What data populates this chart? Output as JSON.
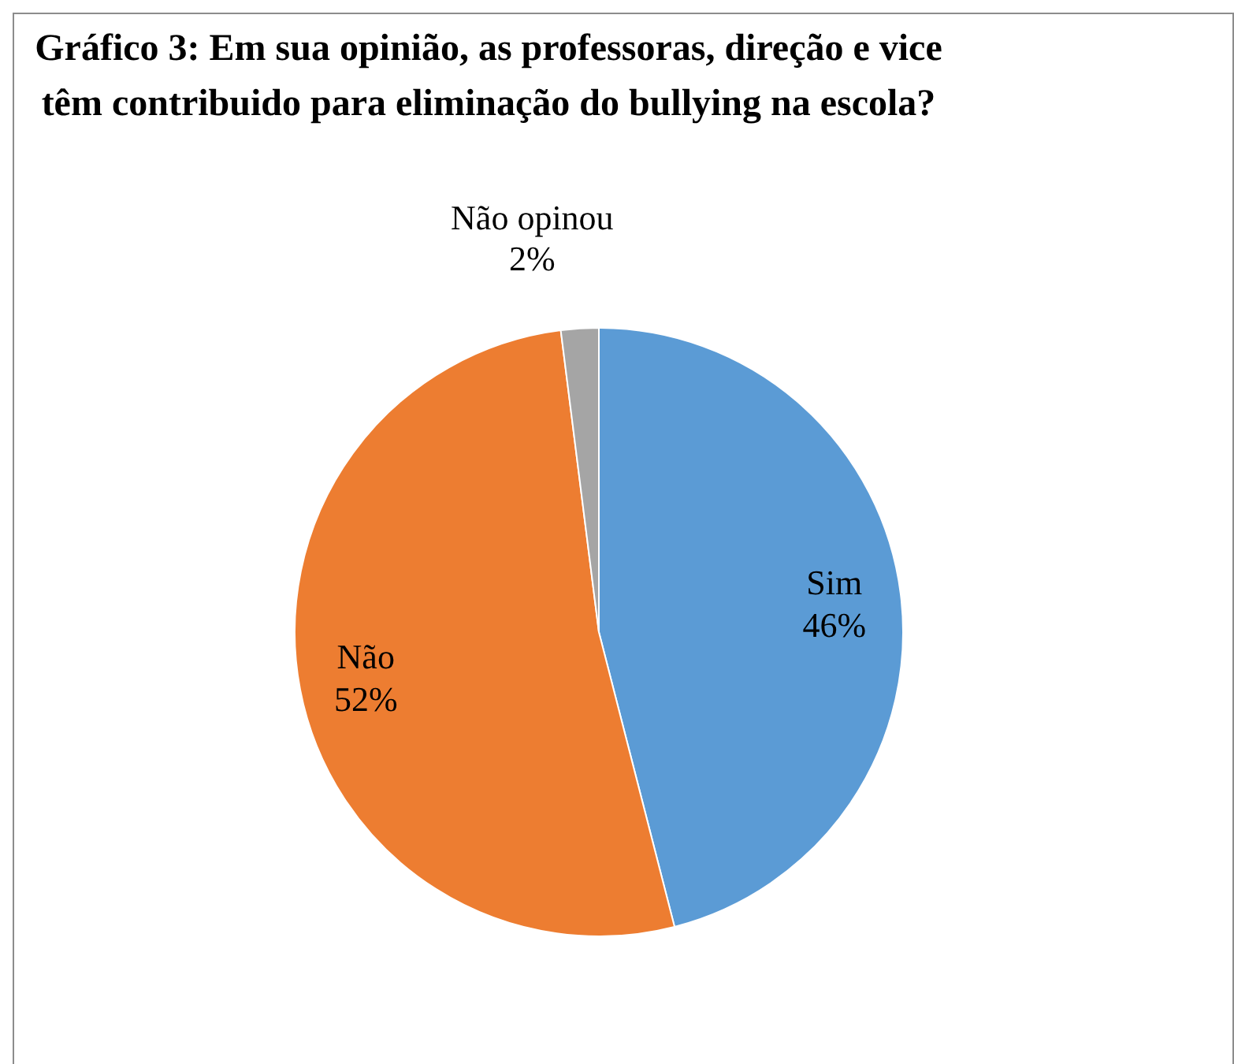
{
  "chart_data": {
    "type": "pie",
    "title": "Gráfico 3:  Em sua opinião, as professoras, direção e vice têm contribuido para eliminação do bullying na escola?",
    "categories": [
      "Sim",
      "Não",
      "Não opinou"
    ],
    "values": [
      46,
      52,
      2
    ],
    "colors": [
      "#5b9bd5",
      "#ed7d31",
      "#a5a5a5"
    ],
    "value_labels": [
      "46%",
      "52%",
      "2%"
    ],
    "legend": false
  }
}
